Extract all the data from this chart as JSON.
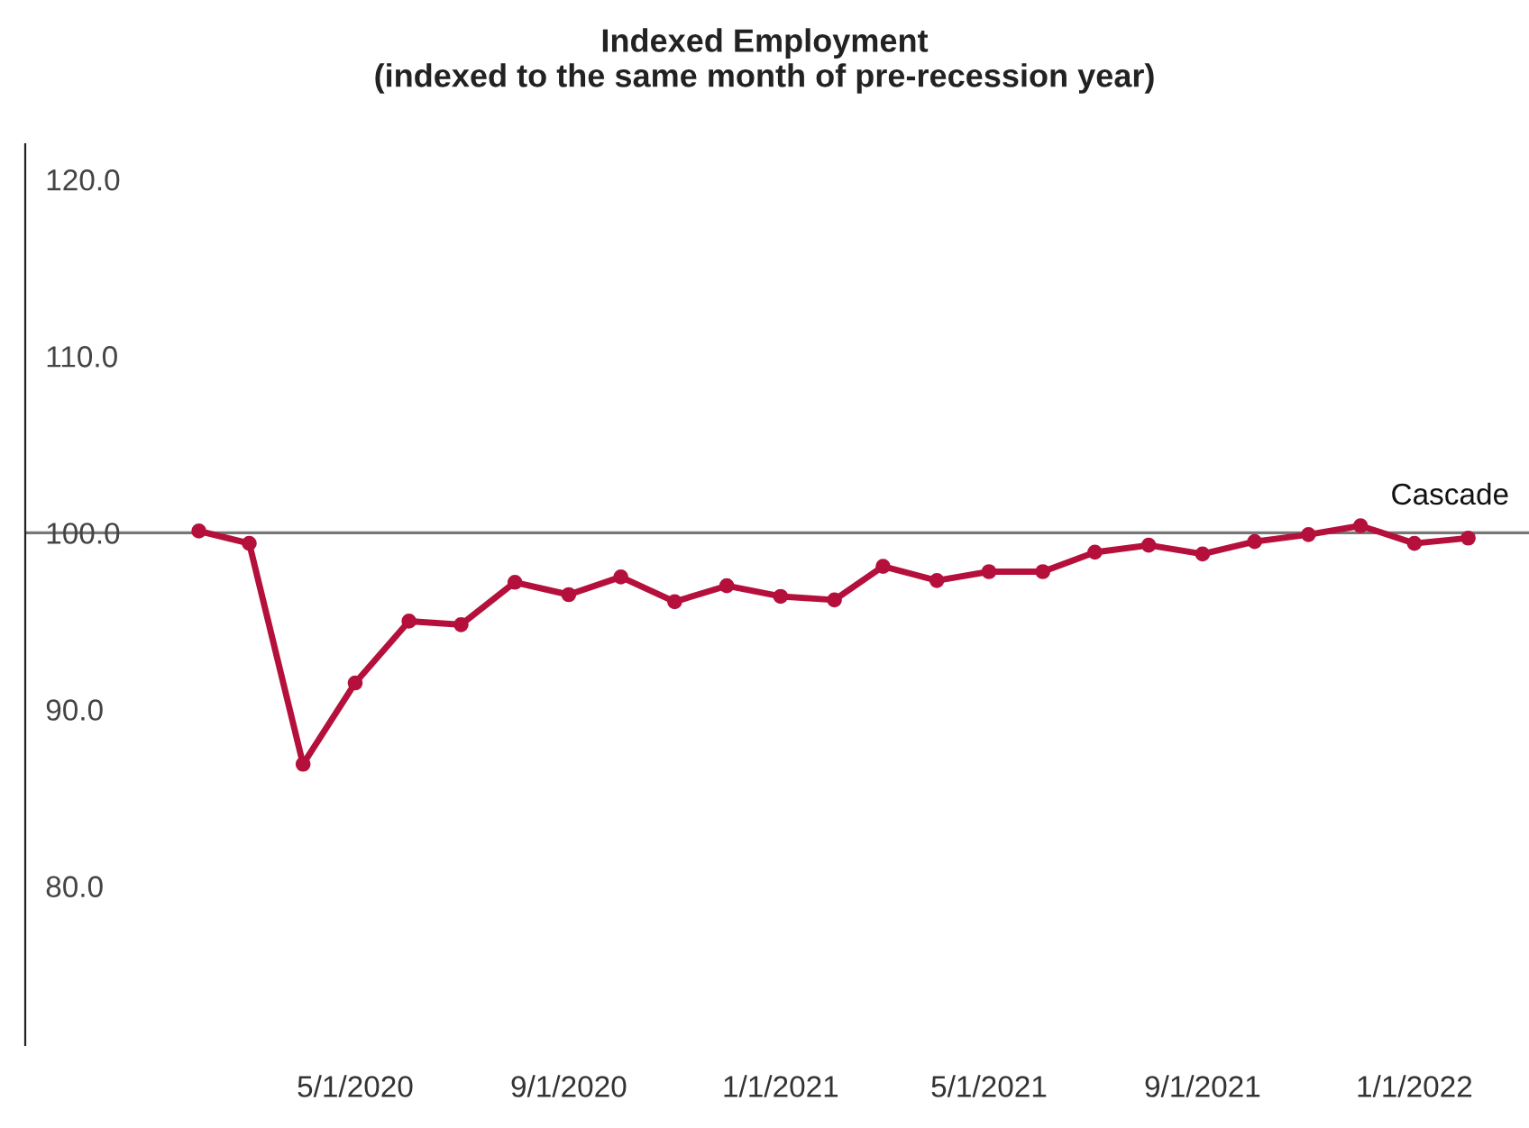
{
  "chart_data": {
    "type": "line",
    "title": "Indexed Employment\n(indexed to the same month of pre-recession year)",
    "x": [
      "2020-02-01",
      "2020-03-01",
      "2020-04-01",
      "2020-05-01",
      "2020-06-01",
      "2020-07-01",
      "2020-08-01",
      "2020-09-01",
      "2020-10-01",
      "2020-11-01",
      "2020-12-01",
      "2021-01-01",
      "2021-02-01",
      "2021-03-01",
      "2021-04-01",
      "2021-05-01",
      "2021-06-01",
      "2021-07-01",
      "2021-08-01",
      "2021-09-01",
      "2021-10-01",
      "2021-11-01",
      "2021-12-01",
      "2022-01-01",
      "2022-02-01"
    ],
    "series": [
      {
        "name": "Cascade",
        "color": "#b5103c",
        "values": [
          100.1,
          99.4,
          86.9,
          91.5,
          95.0,
          94.8,
          97.2,
          96.5,
          97.5,
          96.1,
          97.0,
          96.4,
          96.2,
          98.1,
          97.3,
          97.8,
          97.8,
          98.9,
          99.3,
          98.8,
          99.5,
          99.9,
          100.4,
          99.4,
          99.7
        ]
      }
    ],
    "xlim": [
      "2019-10-24",
      "2022-03-08"
    ],
    "xticks": [
      {
        "value": "2020-05-01",
        "label": "5/1/2020"
      },
      {
        "value": "2020-09-01",
        "label": "9/1/2020"
      },
      {
        "value": "2021-01-01",
        "label": "1/1/2021"
      },
      {
        "value": "2021-05-01",
        "label": "5/1/2021"
      },
      {
        "value": "2021-09-01",
        "label": "9/1/2021"
      },
      {
        "value": "2022-01-01",
        "label": "1/1/2022"
      }
    ],
    "ylim": [
      71,
      122
    ],
    "yticks": [
      {
        "value": 80,
        "label": "80.0"
      },
      {
        "value": 90,
        "label": "90.0"
      },
      {
        "value": 100,
        "label": "100.0"
      },
      {
        "value": 110,
        "label": "110.0"
      },
      {
        "value": 120,
        "label": "120.0"
      }
    ],
    "ref_lines": [
      {
        "axis": "y",
        "value": 100,
        "color": "#777777"
      }
    ],
    "marker": "circle",
    "line_style": "solid",
    "grid": false,
    "legend": false
  }
}
